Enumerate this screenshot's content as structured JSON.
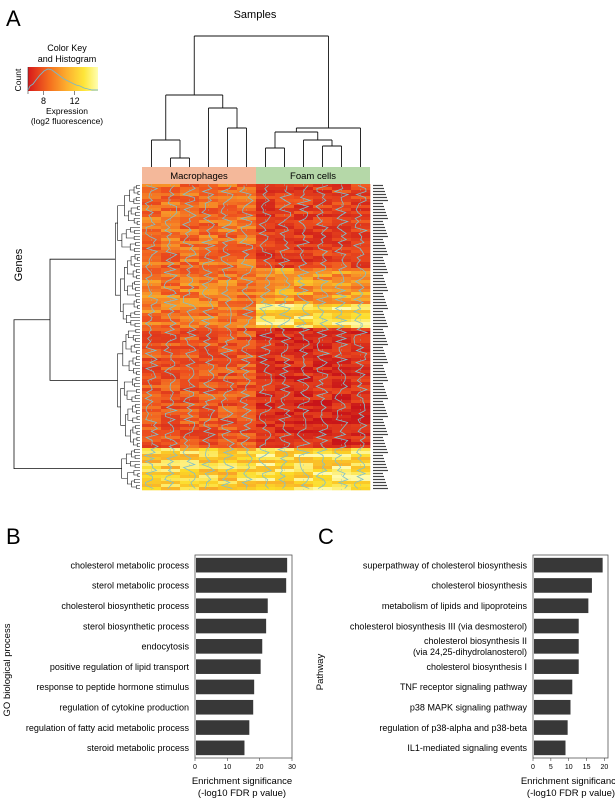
{
  "panel_letters": [
    "A",
    "B",
    "C"
  ],
  "chart_data": [
    {
      "type": "heatmap",
      "panel": "A",
      "title": "Samples",
      "ylabel": "Genes",
      "column_groups": [
        {
          "label": "Macrophages",
          "color": "#f4b89a",
          "count": 6
        },
        {
          "label": "Foam cells",
          "color": "#b5d8a8",
          "count": 6
        }
      ],
      "color_key": {
        "title_line1": "Color Key",
        "title_line2": "and Histogram",
        "histogram_label": "Count",
        "ticks": [
          8,
          12
        ],
        "range": [
          6,
          15
        ],
        "xlabel_line1": "Expression",
        "xlabel_line2": "(log2 fluorescence)",
        "colors": [
          "#d7191c",
          "#f46d1e",
          "#fdae2e",
          "#fee639",
          "#ffffb0"
        ]
      }
    },
    {
      "type": "bar",
      "panel": "B",
      "orientation": "horizontal",
      "ylabel": "GO biological process",
      "xlabel_line1": "Enrichment significance",
      "xlabel_line2": "(-log10 FDR p value)",
      "xlim": [
        0,
        30
      ],
      "xticks": [
        0,
        10,
        20,
        30
      ],
      "categories": [
        "cholesterol metabolic process",
        "sterol metabolic process",
        "cholesterol biosynthetic process",
        "sterol biosynthetic process",
        "endocytosis",
        "positive regulation of lipid transport",
        "response to peptide hormone stimulus",
        "regulation of cytokine production",
        "regulation of fatty acid metabolic process",
        "steroid metabolic process"
      ],
      "values": [
        28.5,
        28.2,
        22.5,
        22.0,
        20.8,
        20.3,
        18.3,
        18.0,
        16.8,
        15.3
      ],
      "bar_color": "#383838"
    },
    {
      "type": "bar",
      "panel": "C",
      "orientation": "horizontal",
      "ylabel": "Pathway",
      "xlabel_line1": "Enrichment significance",
      "xlabel_line2": "(-log10 FDR p value)",
      "xlim": [
        0,
        21
      ],
      "xticks": [
        0,
        5,
        10,
        15,
        20
      ],
      "categories": [
        [
          "superpathway of cholesterol biosynthesis"
        ],
        [
          "cholesterol biosynthesis"
        ],
        [
          "metabolism of lipids and lipoproteins"
        ],
        [
          "cholesterol biosynthesis III (via desmosterol)"
        ],
        [
          "cholesterol biosynthesis II",
          "(via 24,25-dihydrolanosterol)"
        ],
        [
          "cholesterol biosynthesis I"
        ],
        [
          "TNF receptor signaling pathway"
        ],
        [
          "p38 MAPK signaling pathway"
        ],
        [
          "regulation of p38-alpha and p38-beta"
        ],
        [
          "IL1-mediated signaling events"
        ]
      ],
      "values": [
        19.5,
        16.5,
        15.5,
        12.8,
        12.8,
        12.8,
        11.0,
        10.5,
        9.7,
        9.1
      ],
      "bar_color": "#383838"
    }
  ]
}
